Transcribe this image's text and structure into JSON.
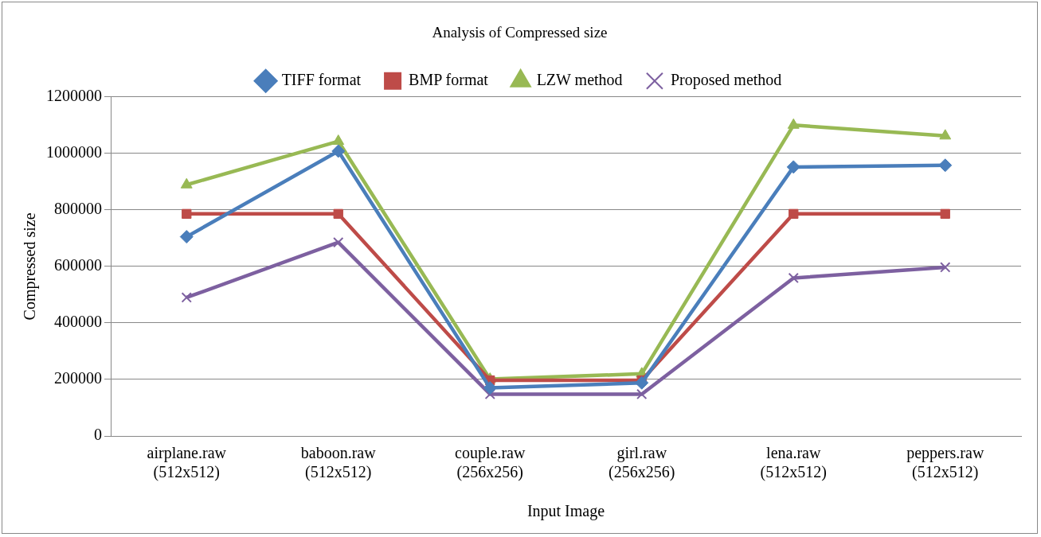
{
  "chart_data": {
    "type": "line",
    "title": "Analysis of Compressed size",
    "xlabel": "Input Image",
    "ylabel": "Compressed size",
    "categories": [
      "airplane.raw (512x512)",
      "baboon.raw (512x512)",
      "couple.raw (256x256)",
      "girl.raw (256x256)",
      "lena.raw (512x512)",
      "peppers.raw (512x512)"
    ],
    "series": [
      {
        "name": "TIFF format",
        "color": "#4a7ebb",
        "marker": "diamond",
        "values": [
          705000,
          1008000,
          170000,
          188000,
          952000,
          958000
        ]
      },
      {
        "name": "BMP format",
        "color": "#be4b48",
        "marker": "square",
        "values": [
          786000,
          786000,
          197000,
          197000,
          786000,
          786000
        ]
      },
      {
        "name": "LZW method",
        "color": "#98b954",
        "marker": "triangle",
        "values": [
          889000,
          1043000,
          201000,
          220000,
          1100000,
          1062000
        ]
      },
      {
        "name": "Proposed method",
        "color": "#7d60a0",
        "marker": "cross",
        "values": [
          490000,
          685000,
          148000,
          148000,
          559000,
          597000
        ]
      }
    ],
    "ylim": [
      0,
      1200000
    ],
    "yticks": [
      0,
      200000,
      400000,
      600000,
      800000,
      1000000,
      1200000
    ],
    "grid": "y",
    "legend": "top"
  }
}
